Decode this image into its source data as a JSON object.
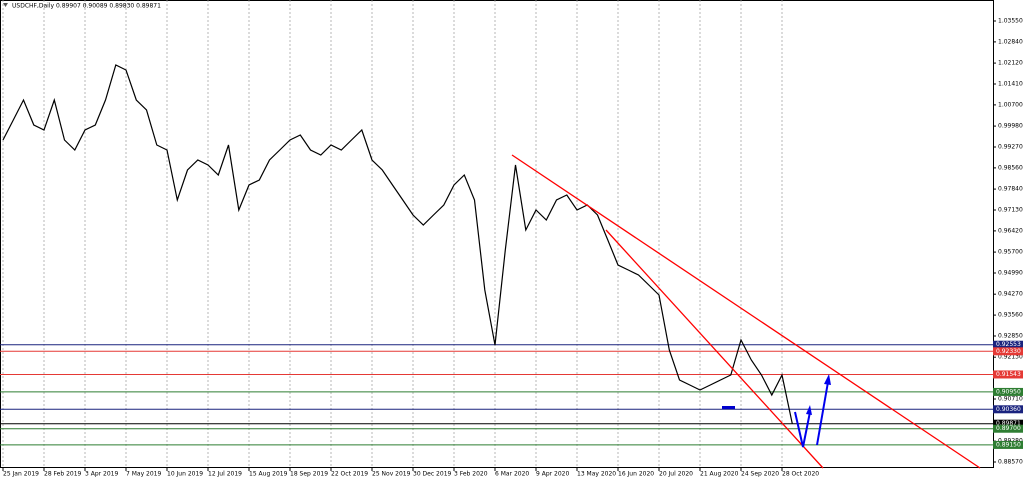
{
  "chart_data": {
    "type": "line",
    "title": "USDCHF,Daily  0.89907 0.90089 0.89830 0.89871",
    "categories": [
      "25 Jan 2019",
      null,
      null,
      null,
      "28 Feb 2019",
      null,
      null,
      null,
      "3 Apr 2019",
      null,
      null,
      null,
      "7 May 2019",
      null,
      null,
      null,
      "10 Jun 2019",
      null,
      null,
      null,
      "12 Jul 2019",
      null,
      null,
      null,
      "15 Aug 2019",
      null,
      null,
      null,
      "18 Sep 2019",
      null,
      null,
      null,
      "22 Oct 2019",
      null,
      null,
      null,
      "25 Nov 2019",
      null,
      null,
      null,
      "30 Dec 2019",
      null,
      null,
      null,
      "3 Feb 2020",
      null,
      null,
      null,
      "6 Mar 2020",
      null,
      null,
      null,
      "9 Apr 2020",
      null,
      null,
      null,
      "13 May 2020",
      null,
      null,
      null,
      "16 Jun 2020",
      null,
      null,
      null,
      "20 Jul 2020",
      null,
      null,
      null,
      "21 Aug 2020",
      null,
      null,
      null,
      "24 Sep 2020",
      null,
      null,
      null,
      "28 Oct 2020",
      null
    ],
    "values": [
      0.99507,
      1.00187,
      1.00866,
      1.00017,
      0.99847,
      1.00866,
      0.99507,
      0.99167,
      0.99847,
      1.00017,
      1.00866,
      1.02055,
      1.01885,
      1.00866,
      1.00526,
      0.99337,
      0.99167,
      0.97469,
      0.98488,
      0.98828,
      0.98658,
      0.98318,
      0.99337,
      0.97129,
      0.97979,
      0.98148,
      0.98828,
      0.99167,
      0.99507,
      0.99677,
      0.99167,
      0.98998,
      0.99337,
      0.99167,
      0.99507,
      0.99847,
      0.98828,
      0.98488,
      0.97979,
      0.97469,
      0.96959,
      0.9662,
      0.96959,
      0.97299,
      0.97979,
      0.98318,
      0.97469,
      0.94412,
      0.92543,
      0.9577,
      0.98658,
      0.9645,
      0.97129,
      0.9679,
      0.97469,
      0.97639,
      0.97129,
      0.97299,
      0.96959,
      0.9611,
      0.95261,
      0.95091,
      0.94921,
      0.94582,
      0.94242,
      0.92373,
      0.91354,
      0.91185,
      0.91015,
      0.91185,
      0.91354,
      0.91524,
      0.92713,
      0.92034,
      0.91524,
      0.90845,
      0.91524,
      0.89871
    ],
    "color": "#000000",
    "ylim": [
      0.88366,
      1.04263
    ],
    "yticks": [
      {
        "value": 1.0355,
        "label": "1.03550"
      },
      {
        "value": 1.0284,
        "label": "1.02840"
      },
      {
        "value": 1.0212,
        "label": "1.02120"
      },
      {
        "value": 1.0141,
        "label": "1.01410"
      },
      {
        "value": 1.007,
        "label": "1.00700"
      },
      {
        "value": 0.9998,
        "label": "0.99980"
      },
      {
        "value": 0.9927,
        "label": "0.99270"
      },
      {
        "value": 0.9856,
        "label": "0.98560"
      },
      {
        "value": 0.9784,
        "label": "0.97840"
      },
      {
        "value": 0.9713,
        "label": "0.97130"
      },
      {
        "value": 0.9642,
        "label": "0.96420"
      },
      {
        "value": 0.957,
        "label": "0.95700"
      },
      {
        "value": 0.9499,
        "label": "0.94990"
      },
      {
        "value": 0.9427,
        "label": "0.94270"
      },
      {
        "value": 0.9356,
        "label": "0.93560"
      },
      {
        "value": 0.9285,
        "label": "0.92850"
      },
      {
        "value": 0.9213,
        "label": "0.92130"
      },
      {
        "value": 0.9071,
        "label": "0.90710"
      },
      {
        "value": 0.8928,
        "label": "0.89280"
      },
      {
        "value": 0.8857,
        "label": "0.88570"
      }
    ],
    "grid": true,
    "levels": [
      {
        "price": 0.92553,
        "color": "#1a237e"
      },
      {
        "price": {
          "value": 0.9233,
          "label": "0.92330"
        },
        "color": "#e53935"
      },
      {
        "price": 0.91543,
        "color": "#e53935"
      },
      {
        "price": {
          "value": 0.9095,
          "label": "0.90950"
        },
        "color": "#2e7d32"
      },
      {
        "price": {
          "value": 0.9036,
          "label": "0.90360"
        },
        "color": "#1a237e"
      },
      {
        "price": 0.89871,
        "color": "#000000"
      },
      {
        "price": {
          "value": 0.897,
          "label": "0.89700"
        },
        "color": "#2e7d32"
      },
      {
        "price": {
          "value": 0.8915,
          "label": "0.89150"
        },
        "color": "#2e7d32"
      }
    ]
  }
}
